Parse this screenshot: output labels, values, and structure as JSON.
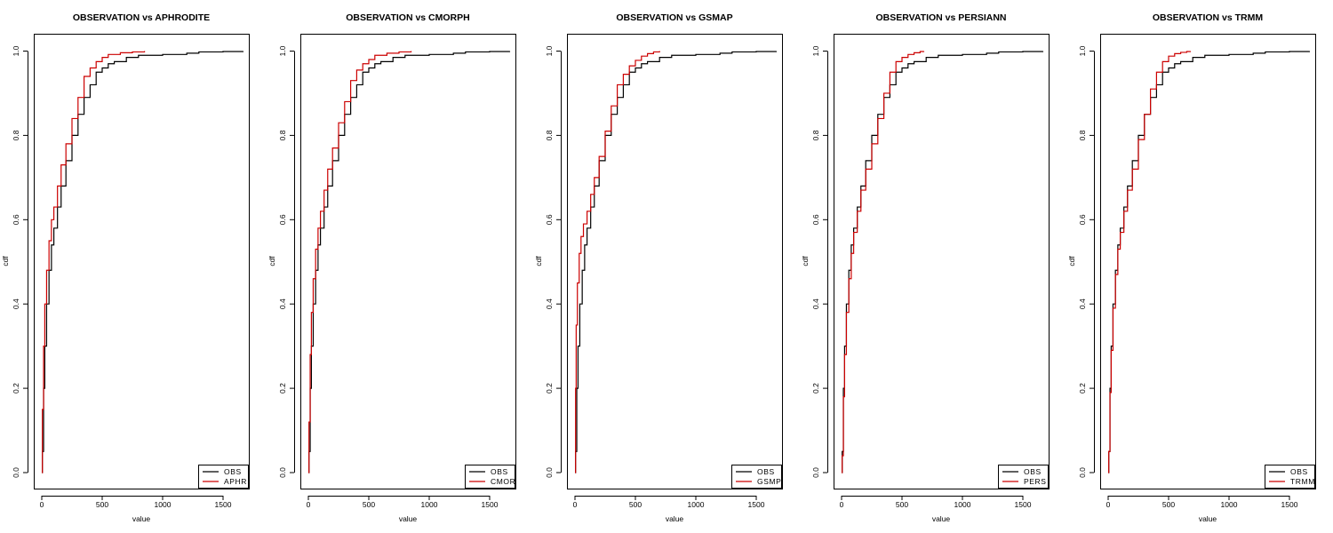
{
  "chart_data": [
    {
      "type": "line",
      "title": "OBSERVATION vs APHRODITE",
      "xlabel": "value",
      "ylabel": "cdf",
      "xlim": [
        0,
        1700
      ],
      "ylim": [
        0,
        1
      ],
      "xticks": [
        "0",
        "500",
        "1000",
        "1500"
      ],
      "yticks": [
        "0.0",
        "0.2",
        "0.4",
        "0.6",
        "0.8",
        "1.0"
      ],
      "legend_position": "bottom-right",
      "series": [
        {
          "name": "OBS",
          "color": "#000000",
          "x": [
            0,
            5,
            15,
            25,
            40,
            60,
            80,
            100,
            130,
            160,
            200,
            250,
            300,
            350,
            400,
            450,
            500,
            550,
            600,
            700,
            800,
            1000,
            1200,
            1300,
            1500,
            1665
          ],
          "y": [
            0.0,
            0.05,
            0.2,
            0.3,
            0.4,
            0.48,
            0.54,
            0.58,
            0.63,
            0.68,
            0.74,
            0.8,
            0.85,
            0.89,
            0.92,
            0.95,
            0.96,
            0.97,
            0.975,
            0.985,
            0.99,
            0.992,
            0.995,
            0.998,
            0.999,
            1.0
          ]
        },
        {
          "name": "APHR",
          "color": "#cc0000",
          "x": [
            0,
            5,
            15,
            25,
            40,
            60,
            80,
            100,
            130,
            160,
            200,
            250,
            300,
            350,
            400,
            450,
            500,
            550,
            650,
            750,
            850
          ],
          "y": [
            0.0,
            0.15,
            0.3,
            0.4,
            0.48,
            0.55,
            0.6,
            0.63,
            0.68,
            0.73,
            0.78,
            0.84,
            0.89,
            0.94,
            0.96,
            0.975,
            0.985,
            0.992,
            0.996,
            0.998,
            1.0
          ]
        }
      ]
    },
    {
      "type": "line",
      "title": "OBSERVATION vs CMORPH",
      "xlabel": "value",
      "ylabel": "cdf",
      "xlim": [
        0,
        1700
      ],
      "ylim": [
        0,
        1
      ],
      "xticks": [
        "0",
        "500",
        "1000",
        "1500"
      ],
      "yticks": [
        "0.0",
        "0.2",
        "0.4",
        "0.6",
        "0.8",
        "1.0"
      ],
      "legend_position": "bottom-right",
      "series": [
        {
          "name": "OBS",
          "color": "#000000",
          "x": [
            0,
            5,
            15,
            25,
            40,
            60,
            80,
            100,
            130,
            160,
            200,
            250,
            300,
            350,
            400,
            450,
            500,
            550,
            600,
            700,
            800,
            1000,
            1200,
            1300,
            1500,
            1665
          ],
          "y": [
            0.0,
            0.05,
            0.2,
            0.3,
            0.4,
            0.48,
            0.54,
            0.58,
            0.63,
            0.68,
            0.74,
            0.8,
            0.85,
            0.89,
            0.92,
            0.95,
            0.96,
            0.97,
            0.975,
            0.985,
            0.99,
            0.992,
            0.995,
            0.998,
            0.999,
            1.0
          ]
        },
        {
          "name": "CMOR",
          "color": "#cc0000",
          "x": [
            0,
            5,
            15,
            25,
            40,
            60,
            80,
            100,
            130,
            160,
            200,
            250,
            300,
            350,
            400,
            450,
            500,
            550,
            650,
            750,
            850
          ],
          "y": [
            0.0,
            0.12,
            0.28,
            0.38,
            0.46,
            0.53,
            0.58,
            0.62,
            0.67,
            0.72,
            0.77,
            0.83,
            0.88,
            0.93,
            0.955,
            0.97,
            0.98,
            0.99,
            0.995,
            0.998,
            1.0
          ]
        }
      ]
    },
    {
      "type": "line",
      "title": "OBSERVATION vs GSMAP",
      "xlabel": "value",
      "ylabel": "cdf",
      "xlim": [
        0,
        1700
      ],
      "ylim": [
        0,
        1
      ],
      "xticks": [
        "0",
        "500",
        "1000",
        "1500"
      ],
      "yticks": [
        "0.0",
        "0.2",
        "0.4",
        "0.6",
        "0.8",
        "1.0"
      ],
      "legend_position": "bottom-right",
      "series": [
        {
          "name": "OBS",
          "color": "#000000",
          "x": [
            0,
            5,
            15,
            25,
            40,
            60,
            80,
            100,
            130,
            160,
            200,
            250,
            300,
            350,
            400,
            450,
            500,
            550,
            600,
            700,
            800,
            1000,
            1200,
            1300,
            1500,
            1665
          ],
          "y": [
            0.0,
            0.05,
            0.2,
            0.3,
            0.4,
            0.48,
            0.54,
            0.58,
            0.63,
            0.68,
            0.74,
            0.8,
            0.85,
            0.89,
            0.92,
            0.95,
            0.96,
            0.97,
            0.975,
            0.985,
            0.99,
            0.992,
            0.995,
            0.998,
            0.999,
            1.0
          ]
        },
        {
          "name": "GSMP",
          "color": "#cc0000",
          "x": [
            0,
            5,
            10,
            20,
            35,
            50,
            70,
            100,
            130,
            160,
            200,
            250,
            300,
            350,
            400,
            450,
            500,
            550,
            600,
            650,
            700
          ],
          "y": [
            0.0,
            0.2,
            0.35,
            0.45,
            0.52,
            0.56,
            0.59,
            0.62,
            0.66,
            0.7,
            0.75,
            0.81,
            0.87,
            0.92,
            0.945,
            0.965,
            0.978,
            0.988,
            0.994,
            0.998,
            1.0
          ]
        }
      ]
    },
    {
      "type": "line",
      "title": "OBSERVATION vs PERSIANN",
      "xlabel": "value",
      "ylabel": "cdf",
      "xlim": [
        0,
        1700
      ],
      "ylim": [
        0,
        1
      ],
      "xticks": [
        "0",
        "500",
        "1000",
        "1500"
      ],
      "yticks": [
        "0.0",
        "0.2",
        "0.4",
        "0.6",
        "0.8",
        "1.0"
      ],
      "legend_position": "bottom-right",
      "series": [
        {
          "name": "OBS",
          "color": "#000000",
          "x": [
            0,
            5,
            15,
            25,
            40,
            60,
            80,
            100,
            130,
            160,
            200,
            250,
            300,
            350,
            400,
            450,
            500,
            550,
            600,
            700,
            800,
            1000,
            1200,
            1300,
            1500,
            1665
          ],
          "y": [
            0.0,
            0.05,
            0.2,
            0.3,
            0.4,
            0.48,
            0.54,
            0.58,
            0.63,
            0.68,
            0.74,
            0.8,
            0.85,
            0.89,
            0.92,
            0.95,
            0.96,
            0.97,
            0.975,
            0.985,
            0.99,
            0.992,
            0.995,
            0.998,
            0.999,
            1.0
          ]
        },
        {
          "name": "PERS",
          "color": "#cc0000",
          "x": [
            0,
            5,
            15,
            25,
            40,
            60,
            80,
            100,
            130,
            160,
            200,
            250,
            300,
            350,
            400,
            450,
            500,
            550,
            600,
            650,
            680
          ],
          "y": [
            0.0,
            0.04,
            0.18,
            0.28,
            0.38,
            0.46,
            0.52,
            0.57,
            0.62,
            0.67,
            0.72,
            0.78,
            0.84,
            0.9,
            0.95,
            0.975,
            0.985,
            0.992,
            0.996,
            0.999,
            1.0
          ]
        }
      ]
    },
    {
      "type": "line",
      "title": "OBSERVATION vs TRMM",
      "xlabel": "value",
      "ylabel": "cdf",
      "xlim": [
        0,
        1700
      ],
      "ylim": [
        0,
        1
      ],
      "xticks": [
        "0",
        "500",
        "1000",
        "1500"
      ],
      "yticks": [
        "0.0",
        "0.2",
        "0.4",
        "0.6",
        "0.8",
        "1.0"
      ],
      "legend_position": "bottom-right",
      "series": [
        {
          "name": "OBS",
          "color": "#000000",
          "x": [
            0,
            5,
            15,
            25,
            40,
            60,
            80,
            100,
            130,
            160,
            200,
            250,
            300,
            350,
            400,
            450,
            500,
            550,
            600,
            700,
            800,
            1000,
            1200,
            1300,
            1500,
            1665
          ],
          "y": [
            0.0,
            0.05,
            0.2,
            0.3,
            0.4,
            0.48,
            0.54,
            0.58,
            0.63,
            0.68,
            0.74,
            0.8,
            0.85,
            0.89,
            0.92,
            0.95,
            0.96,
            0.97,
            0.975,
            0.985,
            0.99,
            0.992,
            0.995,
            0.998,
            0.999,
            1.0
          ]
        },
        {
          "name": "TRMM",
          "color": "#cc0000",
          "x": [
            0,
            5,
            15,
            25,
            40,
            60,
            80,
            100,
            130,
            160,
            200,
            250,
            300,
            350,
            400,
            450,
            500,
            550,
            600,
            650,
            680
          ],
          "y": [
            0.0,
            0.05,
            0.19,
            0.29,
            0.39,
            0.47,
            0.53,
            0.57,
            0.62,
            0.67,
            0.72,
            0.79,
            0.85,
            0.91,
            0.95,
            0.975,
            0.988,
            0.994,
            0.997,
            0.999,
            1.0
          ]
        }
      ]
    }
  ]
}
